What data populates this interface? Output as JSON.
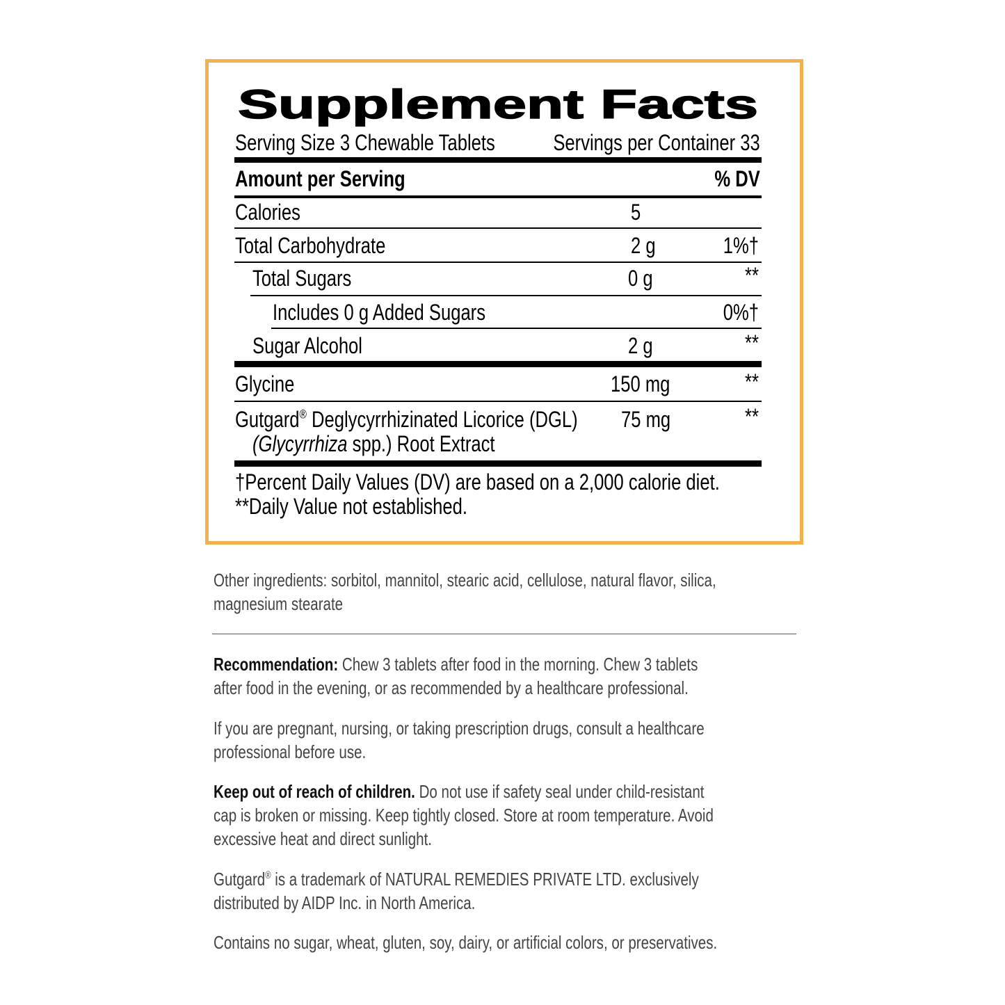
{
  "facts": {
    "title": "Supplement Facts",
    "serving_size": "Serving Size 3 Chewable Tablets",
    "servings_per_container": "Servings per Container 33",
    "amount_header": "Amount per Serving",
    "dv_header": "% DV",
    "rows": [
      {
        "name": "Calories",
        "amount": "5",
        "dv": ""
      },
      {
        "name": "Total Carbohydrate",
        "amount": "2 g",
        "dv": "1%†"
      },
      {
        "name": "Total Sugars",
        "amount": "0 g",
        "dv": "**"
      },
      {
        "name": "Includes 0 g Added Sugars",
        "amount": "",
        "dv": "0%†"
      },
      {
        "name": "Sugar Alcohol",
        "amount": "2 g",
        "dv": "**"
      },
      {
        "name": "Glycine",
        "amount": "150 mg",
        "dv": "**"
      },
      {
        "name": "Gutgard",
        "reg": "®",
        "name_rest": " Deglycyrrhizinated Licorice (DGL)",
        "line2_italic": "(Glycyrrhiza",
        "line2_rest": " spp.) Root Extract",
        "amount": "75 mg",
        "dv": "**"
      }
    ],
    "footnote_1": "†Percent Daily Values (DV) are based on a 2,000 calorie diet.",
    "footnote_2": "**Daily Value not established."
  },
  "info": {
    "other_ingredients": [
      "Other ingredients: sorbitol, mannitol, stearic acid, cellulose, natural flavor, silica,",
      "magnesium stearate"
    ],
    "recommendation_label": "Recommendation:",
    "recommendation": [
      " Chew 3 tablets after food in the morning. Chew 3 tablets",
      "after food in the evening, or as recommended by a healthcare professional."
    ],
    "pregnancy": [
      "If you are pregnant, nursing, or taking prescription drugs, consult a healthcare",
      "professional before use."
    ],
    "keep_label": "Keep out of reach of children.",
    "keep": [
      " Do not use if safety seal under child-resistant",
      "cap is broken or missing. Keep tightly closed. Store at room temperature. Avoid",
      "excessive heat and direct sunlight."
    ],
    "trademark_name": "Gutgard",
    "trademark_reg": "®",
    "trademark": [
      " is a trademark of NATURAL REMEDIES PRIVATE LTD. exclusively",
      "distributed by AIDP Inc. in North America."
    ],
    "contains": "Contains no sugar, wheat, gluten, soy, dairy, or artificial colors, or preservatives."
  },
  "colors": {
    "border": "#f2b04e",
    "body_text": "#444444"
  }
}
